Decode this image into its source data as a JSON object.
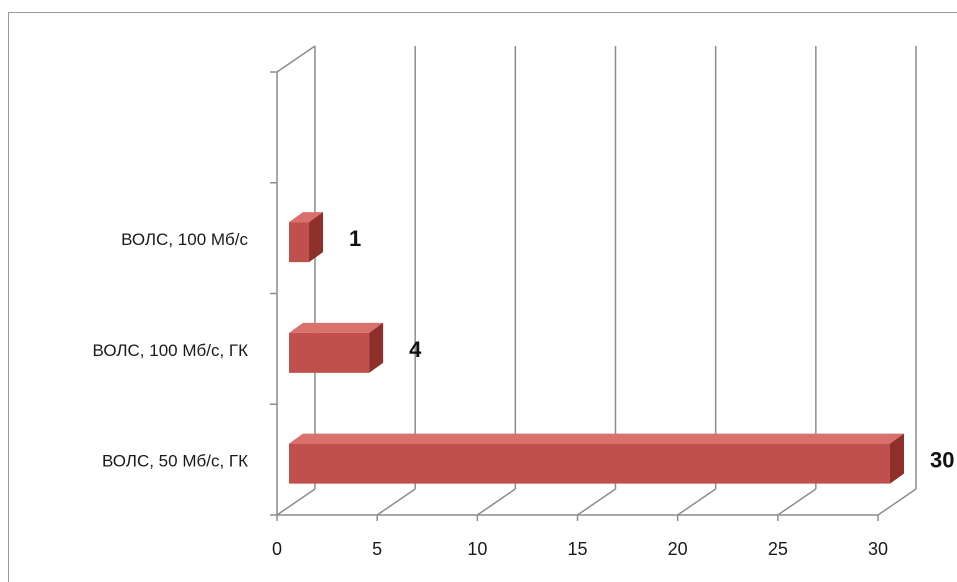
{
  "chart_data": {
    "type": "bar",
    "orientation": "horizontal",
    "style": "3d",
    "categories": [
      "ВОЛС, 100 Мб/с",
      "ВОЛС, 100 Мб/с, ГК",
      "ВОЛС, 50 Мб/с, ГК"
    ],
    "values": [
      1,
      4,
      30
    ],
    "data_labels": [
      "1",
      "4",
      "30"
    ],
    "x_ticks": [
      "0",
      "5",
      "10",
      "15",
      "20",
      "25",
      "30"
    ],
    "xlim": [
      0,
      30
    ],
    "grid": "vertical",
    "bar_color": "#c0504d",
    "title": "",
    "xlabel": "",
    "ylabel": ""
  }
}
